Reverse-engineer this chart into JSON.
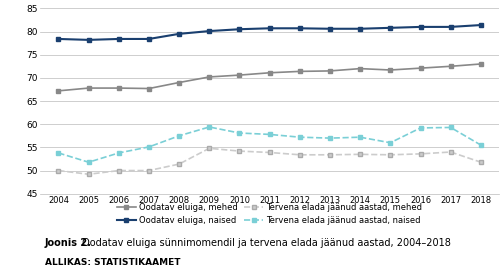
{
  "years": [
    2004,
    2005,
    2006,
    2007,
    2008,
    2009,
    2010,
    2011,
    2012,
    2013,
    2014,
    2015,
    2016,
    2017,
    2018
  ],
  "oodatav_mehed": [
    67.2,
    67.8,
    67.8,
    67.7,
    69.0,
    70.2,
    70.6,
    71.1,
    71.4,
    71.5,
    72.0,
    71.7,
    72.1,
    72.5,
    73.0
  ],
  "oodatav_naised": [
    78.4,
    78.2,
    78.4,
    78.4,
    79.5,
    80.1,
    80.5,
    80.7,
    80.7,
    80.6,
    80.6,
    80.8,
    81.0,
    81.0,
    81.4
  ],
  "tervena_mehed": [
    50.0,
    49.2,
    50.0,
    50.0,
    51.4,
    54.8,
    54.2,
    53.9,
    53.4,
    53.4,
    53.5,
    53.4,
    53.6,
    54.0,
    51.8
  ],
  "tervena_naised": [
    53.8,
    51.8,
    53.8,
    55.1,
    57.5,
    59.4,
    58.1,
    57.8,
    57.2,
    57.0,
    57.2,
    56.0,
    59.2,
    59.3,
    55.5
  ],
  "color_mehed": "#888888",
  "color_naised": "#1a3f6f",
  "color_tervena_mehed": "#cccccc",
  "color_tervena_naised": "#7acfd6",
  "ylim": [
    45,
    85
  ],
  "yticks": [
    45,
    50,
    55,
    60,
    65,
    70,
    75,
    80,
    85
  ],
  "title_bold": "Joonis 2.",
  "title_normal": " Oodatav eluiga sünnimomendil ja tervena elada jäänud aastad, 2004–2018",
  "source": "ALLIKAS: STATISTIKAAMET",
  "legend": [
    "Oodatav eluiga, mehed",
    "Oodatav eluiga, naised",
    "Tervena elada jäänud aastad, mehed",
    "Tervena elada jäänud aastad, naised"
  ],
  "bg_color": "#ffffff"
}
